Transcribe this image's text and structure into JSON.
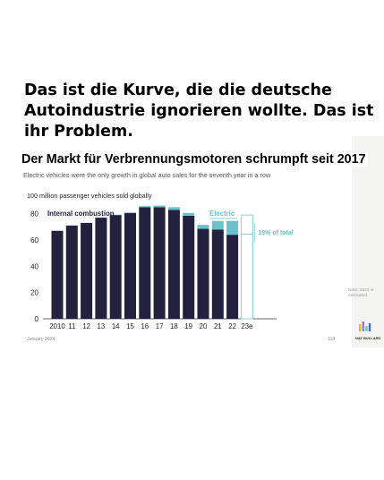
{
  "caption": {
    "line1": "Das ist die Kurve, die die deutsche",
    "line2": "Autoindustrie ignorieren wollte. Das ist",
    "line3": "ihr Problem."
  },
  "slide": {
    "title": "Der Markt für Verbrennungsmotoren schrumpft seit 2017",
    "subtitle": "Electric vehicles were the only growth in global auto sales for the seventh year in a row",
    "unit_label": "100 million passenger vehicles sold globally",
    "note": "Note: 2023 is estimated.",
    "logo_text": "NAT BULLARD",
    "footer_date": "January 2024",
    "page_number": "118"
  },
  "colors": {
    "ice": "#24213f",
    "electric": "#6bc1cb",
    "estimate_outline": "#8fcfd8",
    "estimate_fill": "#ffffff"
  },
  "chart_data": {
    "type": "bar",
    "stacked": true,
    "categories": [
      "2010",
      "11",
      "12",
      "13",
      "14",
      "15",
      "16",
      "17",
      "18",
      "19",
      "20",
      "21",
      "22",
      "23e"
    ],
    "series": [
      {
        "name": "Internal combustion",
        "values": [
          67,
          71,
          73,
          77,
          79,
          80.5,
          85,
          85,
          83,
          78.5,
          68.5,
          68,
          64,
          64.5
        ]
      },
      {
        "name": "Electric",
        "values": [
          0.1,
          0.1,
          0.1,
          0.2,
          0.3,
          0.5,
          0.8,
          1.2,
          2.0,
          2.1,
          3.0,
          6.5,
          10.5,
          14.5
        ]
      }
    ],
    "estimated_category": "23e",
    "annotations": [
      {
        "category": "23e",
        "text": "18% of total"
      }
    ],
    "yticks": [
      0,
      20,
      40,
      60,
      80
    ],
    "ylim": [
      0,
      90
    ],
    "grid": false,
    "legend": "inline-labels"
  }
}
